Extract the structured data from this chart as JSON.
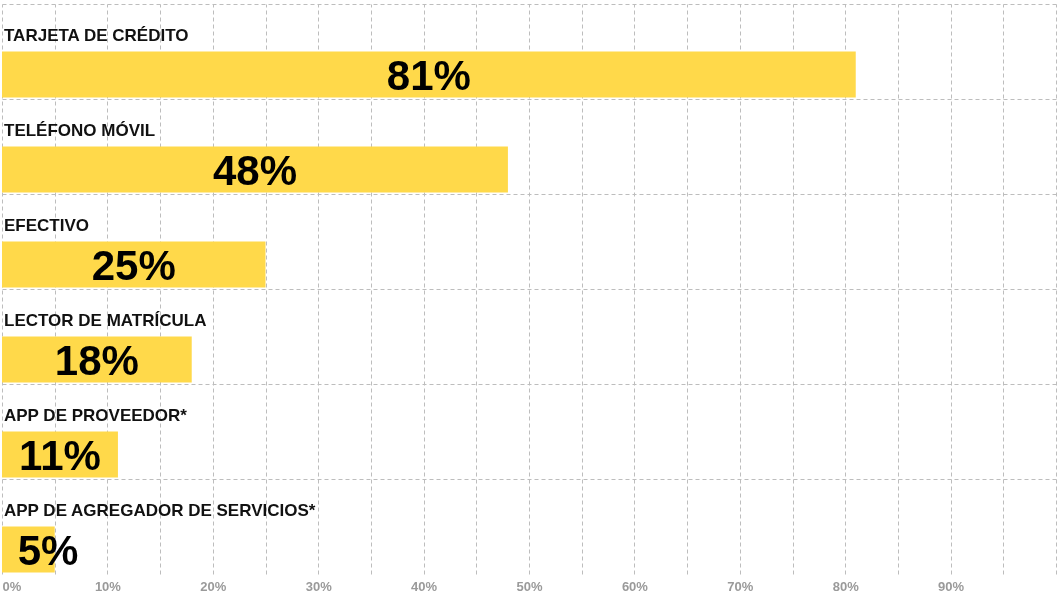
{
  "chart_data": {
    "type": "bar",
    "orientation": "horizontal",
    "categories": [
      "TARJETA DE CRÉDITO",
      "TELÉFONO MÓVIL",
      "EFECTIVO",
      "LECTOR DE MATRÍCULA",
      "APP DE PROVEEDOR*",
      "APP DE AGREGADOR DE SERVICIOS*"
    ],
    "values": [
      81,
      48,
      25,
      18,
      11,
      5
    ],
    "value_labels": [
      "81%",
      "48%",
      "25%",
      "18%",
      "11%",
      "5%"
    ],
    "color": "#ffd94a",
    "xlim": [
      0,
      100
    ],
    "xticks": [
      {
        "value": 0,
        "label": "0%"
      },
      {
        "value": 5,
        "label": null
      },
      {
        "value": 10,
        "label": "10%"
      },
      {
        "value": 15,
        "label": null
      },
      {
        "value": 20,
        "label": "20%"
      },
      {
        "value": 25,
        "label": null
      },
      {
        "value": 30,
        "label": "30%"
      },
      {
        "value": 35,
        "label": null
      },
      {
        "value": 40,
        "label": "40%"
      },
      {
        "value": 45,
        "label": null
      },
      {
        "value": 50,
        "label": "50%"
      },
      {
        "value": 55,
        "label": null
      },
      {
        "value": 60,
        "label": "60%"
      },
      {
        "value": 65,
        "label": null
      },
      {
        "value": 70,
        "label": "70%"
      },
      {
        "value": 75,
        "label": null
      },
      {
        "value": 80,
        "label": "80%"
      },
      {
        "value": 85,
        "label": null
      },
      {
        "value": 90,
        "label": "90%"
      },
      {
        "value": 95,
        "label": null
      },
      {
        "value": 100,
        "label": null
      }
    ],
    "grid": true
  }
}
